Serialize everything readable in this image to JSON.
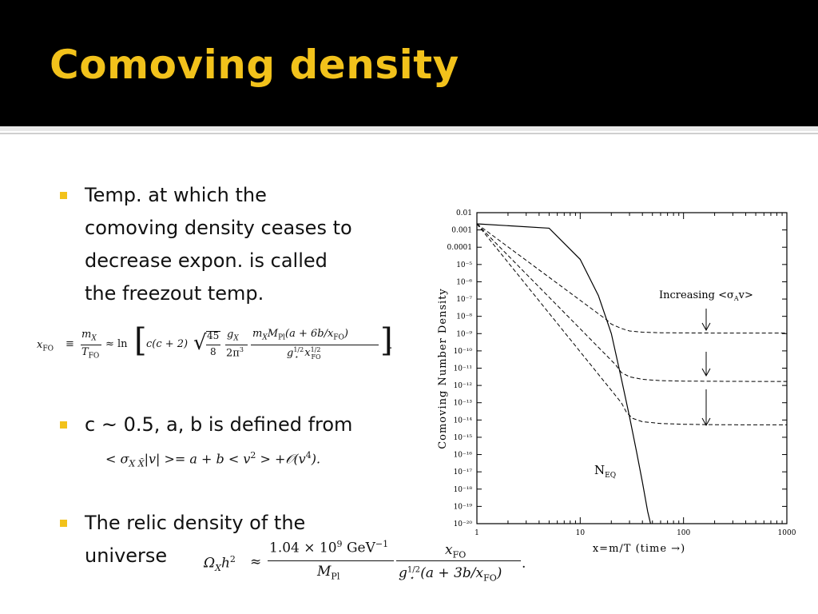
{
  "slide": {
    "title": "Comoving density"
  },
  "bullets": [
    {
      "lines": [
        "Temp. at which the",
        "comoving density ceases to",
        "decrease expon. is called",
        "the freezout temp."
      ]
    },
    {
      "lines": [
        "c ~ 0.5, a, b is defined from"
      ]
    },
    {
      "lines": [
        "The relic density of the",
        "universe"
      ]
    }
  ],
  "equations": {
    "freezeout": {
      "lhs": "x",
      "lhs_sub": "FO",
      "equiv": "≡",
      "frac1_num": "m",
      "frac1_num_sub": "X",
      "frac1_den": "T",
      "frac1_den_sub": "FO",
      "approx_ln": "≈ ln",
      "bracket_start": "c(c + 2)",
      "sqrt_num": "45",
      "sqrt_den": "8",
      "frac3_num": "g",
      "frac3_num_sub": "X",
      "frac3_den": "2π",
      "frac3_den_sup": "3",
      "frac4_num": "m",
      "frac4_num_sub": "X",
      "frac4_num_mid": "M",
      "frac4_num_mid_sub": "Pl",
      "frac4_num_end": "(a + 6b/x",
      "frac4_num_end_sub": "FO",
      "frac4_num_close": ")",
      "frac4_den_g": "g",
      "frac4_den_g_sub": "⋆",
      "frac4_den_g_sup": "1/2",
      "frac4_den_x": "x",
      "frac4_den_x_sub": "FO",
      "frac4_den_x_sup": "1/2",
      "period": "."
    },
    "cross_section": {
      "text1": "< σ",
      "sub": "X X̄",
      "text2": "|v| >= a + b < v",
      "sup1": "2",
      "text3": " > +𝒪(v",
      "sup2": "4",
      "text4": ")."
    },
    "relic": {
      "lhs": "Ω",
      "lhs_sub": "X",
      "lhs_h": "h",
      "lhs_sup": "2",
      "approx": "≈",
      "frac1_num": "1.04 × 10",
      "frac1_num_sup": "9",
      "frac1_num_unit": " GeV",
      "frac1_num_unit_sup": "−1",
      "frac1_den": "M",
      "frac1_den_sub": "Pl",
      "frac2_num": "x",
      "frac2_num_sub": "FO",
      "frac2_den_g": "g",
      "frac2_den_g_sub": "⋆",
      "frac2_den_g_sup": "1/2",
      "frac2_den_rest": "(a + 3b/x",
      "frac2_den_rest_sub": "FO",
      "frac2_den_close": ")",
      "period": "."
    }
  },
  "figure": {
    "ylabel": "Comoving Number Density",
    "xlabel": "x=m/T (time →)",
    "y_tick_labels": [
      "0.01",
      "0.001",
      "0.0001",
      "10⁻⁵",
      "10⁻⁶",
      "10⁻⁷",
      "10⁻⁸",
      "10⁻⁹",
      "10⁻¹⁰",
      "10⁻¹¹",
      "10⁻¹²",
      "10⁻¹³",
      "10⁻¹⁴",
      "10⁻¹⁵",
      "10⁻¹⁶",
      "10⁻¹⁷",
      "10⁻¹⁸",
      "10⁻¹⁹",
      "10⁻²⁰"
    ],
    "x_tick_labels": [
      "1",
      "10",
      "100",
      "1000"
    ],
    "annotation_increasing": "Increasing <σ",
    "annotation_sub": "A",
    "annotation_end": "v>",
    "neq_label": "N",
    "neq_sub": "EQ",
    "curves": {
      "equilibrium": {
        "x": [
          1,
          5,
          10,
          15,
          20,
          25,
          30,
          35,
          40,
          45,
          48
        ],
        "log10_y": [
          -2.65,
          -2.9,
          -4.7,
          -6.8,
          -9.0,
          -11.6,
          -13.8,
          -15.8,
          -17.6,
          -19.3,
          -20.0
        ]
      },
      "freezeout_upper": {
        "x": [
          1,
          18,
          20,
          25,
          30,
          40,
          60,
          100,
          200,
          500,
          1000
        ],
        "log10_y": [
          -2.65,
          -8.2,
          -8.45,
          -8.7,
          -8.85,
          -8.92,
          -8.95,
          -8.96,
          -8.97,
          -8.97,
          -8.97
        ]
      },
      "freezeout_middle": {
        "x": [
          1,
          22,
          25,
          30,
          40,
          60,
          100,
          200,
          500,
          1000
        ],
        "log10_y": [
          -2.65,
          -10.8,
          -11.25,
          -11.5,
          -11.65,
          -11.72,
          -11.75,
          -11.76,
          -11.77,
          -11.77
        ]
      },
      "freezeout_lower": {
        "x": [
          1,
          25,
          28,
          32,
          40,
          60,
          100,
          200,
          500,
          1000
        ],
        "log10_y": [
          -2.65,
          -13.0,
          -13.55,
          -13.9,
          -14.1,
          -14.2,
          -14.25,
          -14.27,
          -14.28,
          -14.28
        ]
      }
    }
  }
}
